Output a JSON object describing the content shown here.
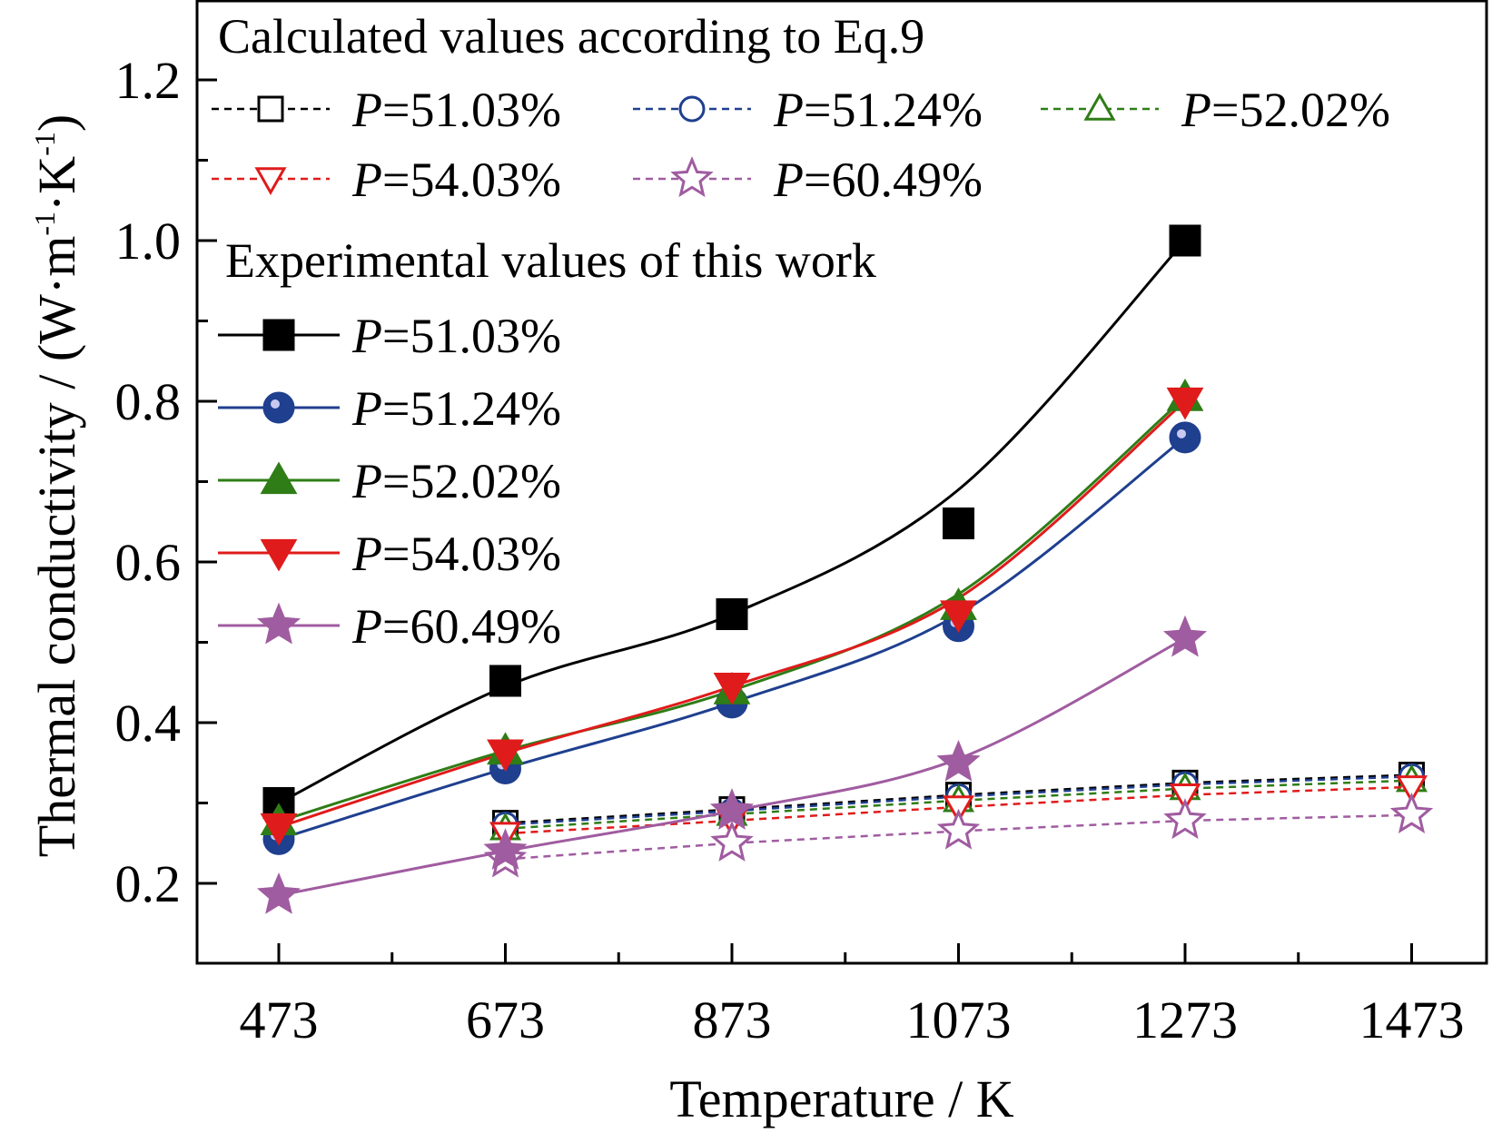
{
  "chart_data": {
    "type": "line",
    "xlabel": "Temperature / K",
    "ylabel_main": "Thermal conductivity / (W",
    "ylabel_units": {
      "dot": "·",
      "m": "m",
      "m_exp": "-1",
      "K": "K",
      "K_exp": "-1",
      "close": ")"
    },
    "xticks": [
      473,
      673,
      873,
      1073,
      1273,
      1473
    ],
    "xlim": [
      400,
      1540
    ],
    "yticks": [
      0.2,
      0.4,
      0.6,
      0.8,
      1.0,
      1.2
    ],
    "ytick_labels": [
      "0.2",
      "0.4",
      "0.6",
      "0.8",
      "1.0",
      "1.2"
    ],
    "ylim": [
      0.1,
      1.3
    ],
    "legend": {
      "calculated_title": "Calculated values according to Eq.9",
      "experimental_title": "Experimental  values of this work",
      "p_label": "P",
      "placement": "top-left"
    },
    "calculated_series": [
      {
        "name": "=51.03%",
        "color": "#000000",
        "marker": "open-square",
        "x": [
          673,
          873,
          1073,
          1273,
          1473
        ],
        "values": [
          0.275,
          0.292,
          0.31,
          0.325,
          0.335
        ]
      },
      {
        "name": "=51.24%",
        "color": "#1f3f8f",
        "marker": "open-circle",
        "x": [
          673,
          873,
          1073,
          1273,
          1473
        ],
        "values": [
          0.273,
          0.29,
          0.308,
          0.323,
          0.333
        ]
      },
      {
        "name": "=52.02%",
        "color": "#2e7d16",
        "marker": "open-triangle-up",
        "x": [
          673,
          873,
          1073,
          1273,
          1473
        ],
        "values": [
          0.268,
          0.286,
          0.303,
          0.318,
          0.328
        ]
      },
      {
        "name": "=54.03%",
        "color": "#e01b1b",
        "marker": "open-triangle-down",
        "x": [
          673,
          873,
          1073,
          1273,
          1473
        ],
        "values": [
          0.262,
          0.278,
          0.295,
          0.31,
          0.32
        ]
      },
      {
        "name": "=60.49%",
        "color": "#a05ca0",
        "marker": "open-star",
        "x": [
          673,
          873,
          1073,
          1273,
          1473
        ],
        "values": [
          0.23,
          0.25,
          0.265,
          0.278,
          0.285
        ]
      }
    ],
    "experimental_series": [
      {
        "name": "=51.03%",
        "color": "#000000",
        "marker": "filled-square",
        "x": [
          473,
          673,
          873,
          1073,
          1273
        ],
        "values": [
          0.3,
          0.452,
          0.535,
          0.648,
          1.0
        ],
        "fit": [
          0.3,
          0.445,
          0.535,
          0.69,
          1.0
        ]
      },
      {
        "name": "=51.24%",
        "color": "#1f3f8f",
        "marker": "filled-circle",
        "x": [
          473,
          673,
          873,
          1073,
          1273
        ],
        "values": [
          0.255,
          0.343,
          0.425,
          0.52,
          0.755
        ],
        "fit": [
          0.255,
          0.343,
          0.425,
          0.535,
          0.755
        ]
      },
      {
        "name": "=52.02%",
        "color": "#2e7d16",
        "marker": "filled-triangle-up",
        "x": [
          473,
          673,
          873,
          1073,
          1273
        ],
        "values": [
          0.277,
          0.365,
          0.44,
          0.545,
          0.805
        ],
        "fit": [
          0.277,
          0.365,
          0.44,
          0.56,
          0.805
        ]
      },
      {
        "name": "=54.03%",
        "color": "#e01b1b",
        "marker": "filled-triangle-down",
        "x": [
          473,
          673,
          873,
          1073,
          1273
        ],
        "values": [
          0.27,
          0.362,
          0.445,
          0.535,
          0.8
        ],
        "fit": [
          0.27,
          0.362,
          0.445,
          0.555,
          0.8
        ]
      },
      {
        "name": "=60.49%",
        "color": "#a05ca0",
        "marker": "filled-star",
        "x": [
          473,
          673,
          873,
          1073,
          1273
        ],
        "values": [
          0.185,
          0.24,
          0.29,
          0.35,
          0.505
        ],
        "fit": [
          0.185,
          0.24,
          0.29,
          0.355,
          0.505
        ]
      }
    ]
  }
}
